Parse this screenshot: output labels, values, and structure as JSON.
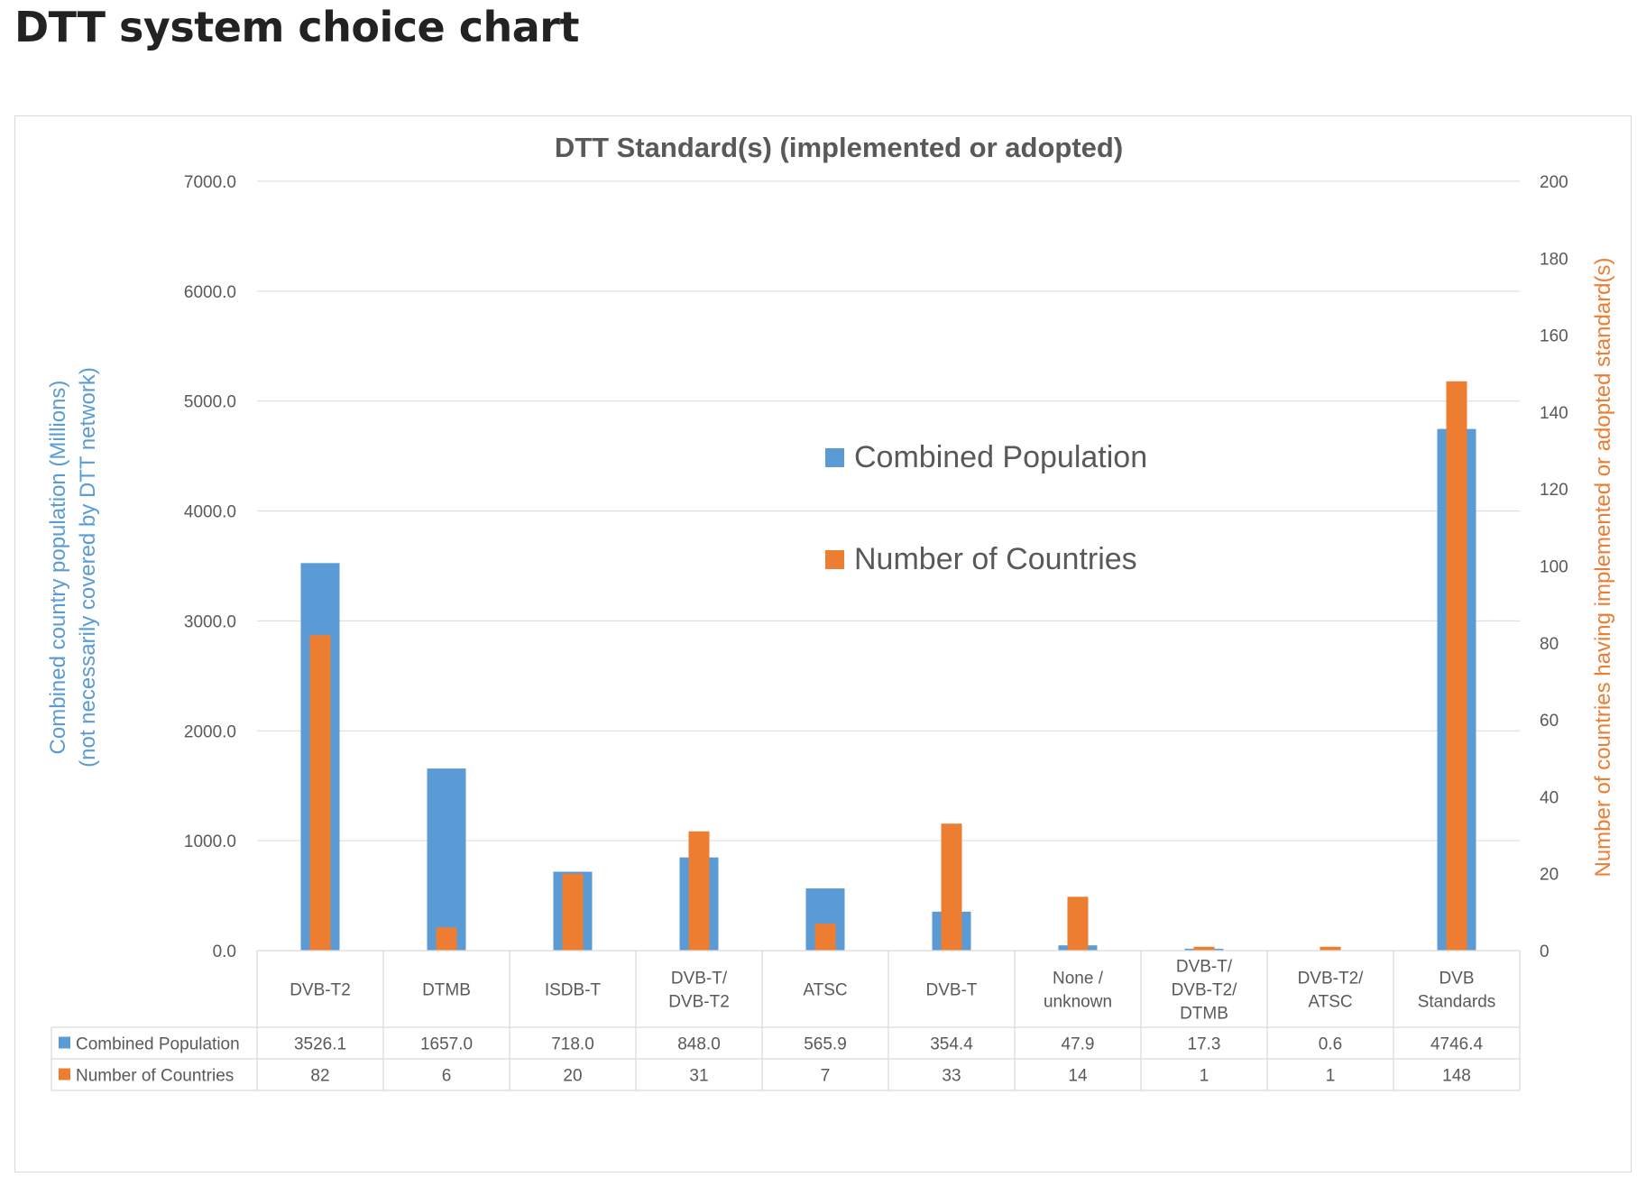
{
  "page": {
    "title": "DTT system choice chart"
  },
  "colors": {
    "population": "#5b9bd5",
    "countries": "#ed7d31",
    "grid": "#d9d9d9",
    "text": "#595959"
  },
  "chart_data": {
    "type": "bar",
    "title": "DTT Standard(s) (implemented or adopted)",
    "categories": [
      [
        "DVB-T2"
      ],
      [
        "DTMB"
      ],
      [
        "ISDB-T"
      ],
      [
        "DVB-T/",
        "DVB-T2"
      ],
      [
        "ATSC"
      ],
      [
        "DVB-T"
      ],
      [
        "None /",
        "unknown"
      ],
      [
        "DVB-T/",
        "DVB-T2/",
        "DTMB"
      ],
      [
        "DVB-T2/",
        "ATSC"
      ],
      [
        "DVB",
        "Standards"
      ]
    ],
    "series": [
      {
        "name": "Combined Population",
        "axis": "left",
        "values": [
          3526.1,
          1657.0,
          718.0,
          848.0,
          565.9,
          354.4,
          47.9,
          17.3,
          0.6,
          4746.4
        ],
        "labels": [
          "3526.1",
          "1657.0",
          "718.0",
          "848.0",
          "565.9",
          "354.4",
          "47.9",
          "17.3",
          "0.6",
          "4746.4"
        ]
      },
      {
        "name": "Number of Countries",
        "axis": "right",
        "values": [
          82,
          6,
          20,
          31,
          7,
          33,
          14,
          1,
          1,
          148
        ],
        "labels": [
          "82",
          "6",
          "20",
          "31",
          "7",
          "33",
          "14",
          "1",
          "1",
          "148"
        ]
      }
    ],
    "y_left": {
      "label_lines": [
        "Combined country population (Millions)",
        "(not necessarily covered by DTT network)"
      ],
      "range": [
        0,
        7000
      ],
      "ticks": [
        0,
        1000,
        2000,
        3000,
        4000,
        5000,
        6000,
        7000
      ],
      "tick_labels": [
        "0.0",
        "1000.0",
        "2000.0",
        "3000.0",
        "4000.0",
        "5000.0",
        "6000.0",
        "7000.0"
      ]
    },
    "y_right": {
      "label": "Number of countries having implemented or adopted standard(s)",
      "range": [
        0,
        200
      ],
      "ticks": [
        0,
        20,
        40,
        60,
        80,
        100,
        120,
        140,
        160,
        180,
        200
      ],
      "tick_labels": [
        "0",
        "20",
        "40",
        "60",
        "80",
        "100",
        "120",
        "140",
        "160",
        "180",
        "200"
      ]
    },
    "legend": {
      "placement": "center",
      "entries": [
        "Combined Population",
        "Number of Countries"
      ]
    },
    "grid": true,
    "data_table": true
  }
}
